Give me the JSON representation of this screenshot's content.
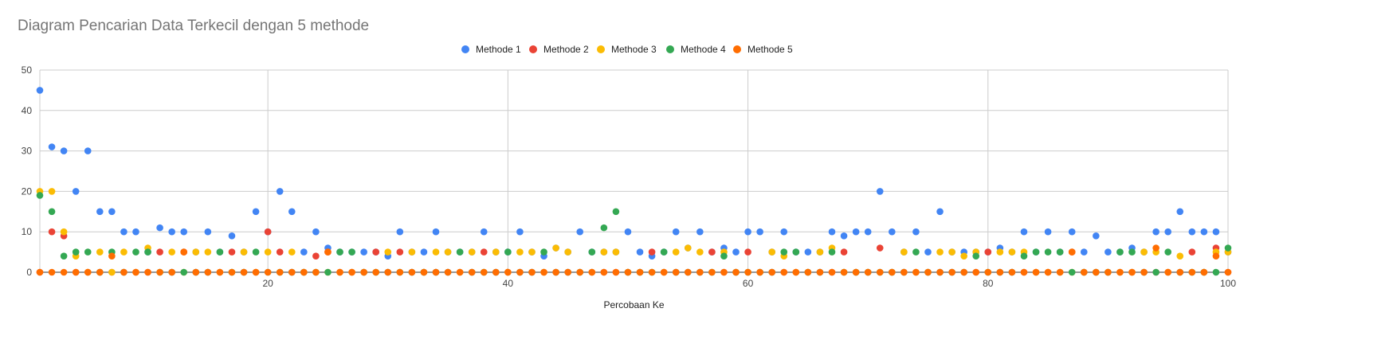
{
  "chart_data": {
    "type": "scatter",
    "title": "Diagram Pencarian Data Terkecil dengan 5 methode",
    "xlabel": "Percobaan Ke",
    "ylabel": "",
    "xlim": [
      1,
      100
    ],
    "ylim": [
      0,
      50
    ],
    "xticks": [
      20,
      40,
      60,
      80,
      100
    ],
    "yticks": [
      0,
      10,
      20,
      30,
      40,
      50
    ],
    "grid": true,
    "legend_position": "top-center",
    "series": [
      {
        "name": "Methode 1",
        "color": "#4285f4",
        "x": [
          1,
          2,
          3,
          4,
          5,
          6,
          7,
          8,
          9,
          10,
          11,
          12,
          13,
          14,
          15,
          16,
          17,
          18,
          19,
          20,
          21,
          22,
          23,
          24,
          25,
          26,
          27,
          28,
          29,
          30,
          31,
          32,
          33,
          34,
          35,
          36,
          37,
          38,
          39,
          40,
          41,
          42,
          43,
          44,
          45,
          46,
          47,
          48,
          49,
          50,
          51,
          52,
          53,
          54,
          55,
          56,
          57,
          58,
          59,
          60,
          61,
          62,
          63,
          64,
          65,
          66,
          67,
          68,
          69,
          70,
          71,
          72,
          73,
          74,
          75,
          76,
          77,
          78,
          79,
          80,
          81,
          82,
          83,
          84,
          85,
          86,
          87,
          88,
          89,
          90,
          91,
          92,
          93,
          94,
          95,
          96,
          97,
          98,
          99,
          100
        ],
        "y": [
          45,
          31,
          30,
          20,
          30,
          15,
          15,
          10,
          10,
          5,
          11,
          10,
          10,
          5,
          10,
          5,
          9,
          5,
          15,
          10,
          20,
          15,
          5,
          10,
          6,
          5,
          5,
          5,
          5,
          4,
          10,
          5,
          5,
          10,
          5,
          5,
          5,
          10,
          5,
          5,
          10,
          5,
          4,
          6,
          5,
          10,
          5,
          5,
          5,
          10,
          5,
          4,
          5,
          10,
          6,
          10,
          5,
          6,
          5,
          10,
          10,
          5,
          10,
          5,
          5,
          5,
          10,
          9,
          10,
          10,
          20,
          10,
          5,
          10,
          5,
          15,
          5,
          5,
          5,
          5,
          6,
          5,
          10,
          5,
          10,
          5,
          10,
          5,
          9,
          5,
          5,
          6,
          5,
          10,
          10,
          15,
          10,
          10,
          10,
          5
        ]
      },
      {
        "name": "Methode 2",
        "color": "#ea4335",
        "x": [
          1,
          2,
          3,
          4,
          5,
          6,
          7,
          8,
          9,
          10,
          11,
          12,
          13,
          14,
          15,
          16,
          17,
          18,
          19,
          20,
          21,
          22,
          23,
          24,
          25,
          26,
          27,
          28,
          29,
          30,
          31,
          32,
          33,
          34,
          35,
          36,
          37,
          38,
          39,
          40,
          41,
          42,
          43,
          44,
          45,
          46,
          47,
          48,
          49,
          50,
          51,
          52,
          53,
          54,
          55,
          56,
          57,
          58,
          59,
          60,
          61,
          62,
          63,
          64,
          65,
          66,
          67,
          68,
          69,
          70,
          71,
          72,
          73,
          74,
          75,
          76,
          77,
          78,
          79,
          80,
          81,
          82,
          83,
          84,
          85,
          86,
          87,
          88,
          89,
          90,
          91,
          92,
          93,
          94,
          95,
          96,
          97,
          98,
          99,
          100
        ],
        "y": [
          0,
          10,
          9,
          0,
          0,
          0,
          0,
          0,
          0,
          0,
          5,
          0,
          5,
          0,
          0,
          0,
          5,
          0,
          0,
          10,
          5,
          0,
          0,
          4,
          5,
          0,
          0,
          0,
          5,
          0,
          5,
          0,
          0,
          0,
          0,
          0,
          0,
          5,
          0,
          0,
          0,
          0,
          0,
          0,
          0,
          0,
          0,
          0,
          0,
          0,
          0,
          5,
          0,
          0,
          0,
          0,
          5,
          0,
          0,
          5,
          0,
          0,
          0,
          0,
          0,
          0,
          0,
          5,
          0,
          0,
          6,
          0,
          0,
          0,
          0,
          0,
          0,
          0,
          0,
          5,
          0,
          0,
          0,
          0,
          0,
          0,
          5,
          0,
          0,
          0,
          0,
          0,
          0,
          0,
          0,
          0,
          5,
          0,
          6,
          0
        ]
      },
      {
        "name": "Methode 3",
        "color": "#fbbc04",
        "x": [
          1,
          2,
          3,
          4,
          5,
          6,
          7,
          8,
          9,
          10,
          11,
          12,
          13,
          14,
          15,
          16,
          17,
          18,
          19,
          20,
          21,
          22,
          23,
          24,
          25,
          26,
          27,
          28,
          29,
          30,
          31,
          32,
          33,
          34,
          35,
          36,
          37,
          38,
          39,
          40,
          41,
          42,
          43,
          44,
          45,
          46,
          47,
          48,
          49,
          50,
          51,
          52,
          53,
          54,
          55,
          56,
          57,
          58,
          59,
          60,
          61,
          62,
          63,
          64,
          65,
          66,
          67,
          68,
          69,
          70,
          71,
          72,
          73,
          74,
          75,
          76,
          77,
          78,
          79,
          80,
          81,
          82,
          83,
          84,
          85,
          86,
          87,
          88,
          89,
          90,
          91,
          92,
          93,
          94,
          95,
          96,
          97,
          98,
          99,
          100
        ],
        "y": [
          20,
          20,
          10,
          4,
          0,
          5,
          0,
          5,
          0,
          6,
          0,
          5,
          0,
          5,
          5,
          0,
          0,
          5,
          0,
          5,
          0,
          5,
          0,
          0,
          0,
          0,
          0,
          0,
          0,
          5,
          0,
          5,
          0,
          5,
          5,
          0,
          5,
          0,
          5,
          0,
          5,
          5,
          0,
          6,
          5,
          0,
          0,
          5,
          5,
          0,
          0,
          0,
          0,
          5,
          6,
          5,
          0,
          5,
          0,
          0,
          0,
          5,
          4,
          0,
          0,
          5,
          6,
          0,
          0,
          0,
          0,
          0,
          5,
          0,
          0,
          5,
          5,
          4,
          5,
          0,
          5,
          5,
          5,
          0,
          0,
          0,
          0,
          0,
          0,
          0,
          0,
          0,
          5,
          5,
          0,
          4,
          0,
          0,
          5,
          5
        ]
      },
      {
        "name": "Methode 4",
        "color": "#34a853",
        "x": [
          1,
          2,
          3,
          4,
          5,
          6,
          7,
          8,
          9,
          10,
          11,
          12,
          13,
          14,
          15,
          16,
          17,
          18,
          19,
          20,
          21,
          22,
          23,
          24,
          25,
          26,
          27,
          28,
          29,
          30,
          31,
          32,
          33,
          34,
          35,
          36,
          37,
          38,
          39,
          40,
          41,
          42,
          43,
          44,
          45,
          46,
          47,
          48,
          49,
          50,
          51,
          52,
          53,
          54,
          55,
          56,
          57,
          58,
          59,
          60,
          61,
          62,
          63,
          64,
          65,
          66,
          67,
          68,
          69,
          70,
          71,
          72,
          73,
          74,
          75,
          76,
          77,
          78,
          79,
          80,
          81,
          82,
          83,
          84,
          85,
          86,
          87,
          88,
          89,
          90,
          91,
          92,
          93,
          94,
          95,
          96,
          97,
          98,
          99,
          100
        ],
        "y": [
          19,
          15,
          4,
          5,
          5,
          0,
          5,
          0,
          5,
          5,
          0,
          0,
          0,
          0,
          0,
          5,
          0,
          0,
          5,
          0,
          0,
          0,
          0,
          0,
          0,
          5,
          5,
          0,
          0,
          0,
          0,
          0,
          0,
          0,
          0,
          5,
          0,
          0,
          0,
          5,
          0,
          0,
          5,
          0,
          0,
          0,
          5,
          11,
          15,
          0,
          0,
          0,
          5,
          0,
          0,
          0,
          0,
          4,
          0,
          0,
          0,
          0,
          5,
          5,
          0,
          0,
          5,
          0,
          0,
          0,
          0,
          0,
          0,
          5,
          0,
          0,
          0,
          0,
          4,
          0,
          0,
          0,
          4,
          5,
          5,
          5,
          0,
          0,
          0,
          0,
          5,
          5,
          0,
          0,
          5,
          0,
          0,
          0,
          0,
          6
        ]
      },
      {
        "name": "Methode 5",
        "color": "#ff6d01",
        "x": [
          1,
          2,
          3,
          4,
          5,
          6,
          7,
          8,
          9,
          10,
          11,
          12,
          13,
          14,
          15,
          16,
          17,
          18,
          19,
          20,
          21,
          22,
          23,
          24,
          25,
          26,
          27,
          28,
          29,
          30,
          31,
          32,
          33,
          34,
          35,
          36,
          37,
          38,
          39,
          40,
          41,
          42,
          43,
          44,
          45,
          46,
          47,
          48,
          49,
          50,
          51,
          52,
          53,
          54,
          55,
          56,
          57,
          58,
          59,
          60,
          61,
          62,
          63,
          64,
          65,
          66,
          67,
          68,
          69,
          70,
          71,
          72,
          73,
          74,
          75,
          76,
          77,
          78,
          79,
          80,
          81,
          82,
          83,
          84,
          85,
          86,
          87,
          88,
          89,
          90,
          91,
          92,
          93,
          94,
          95,
          96,
          97,
          98,
          99,
          100
        ],
        "y": [
          0,
          0,
          0,
          0,
          0,
          0,
          4,
          0,
          0,
          0,
          0,
          0,
          5,
          0,
          0,
          0,
          0,
          0,
          0,
          0,
          0,
          0,
          0,
          0,
          5,
          0,
          0,
          0,
          0,
          0,
          0,
          0,
          0,
          0,
          0,
          0,
          0,
          0,
          0,
          0,
          0,
          0,
          0,
          0,
          0,
          0,
          0,
          0,
          0,
          0,
          0,
          0,
          0,
          0,
          0,
          0,
          0,
          0,
          0,
          0,
          0,
          0,
          0,
          0,
          0,
          0,
          0,
          0,
          0,
          0,
          0,
          0,
          0,
          0,
          0,
          0,
          0,
          0,
          0,
          0,
          0,
          0,
          0,
          0,
          0,
          0,
          5,
          0,
          0,
          0,
          0,
          0,
          0,
          6,
          0,
          0,
          0,
          0,
          4,
          0
        ]
      }
    ]
  }
}
